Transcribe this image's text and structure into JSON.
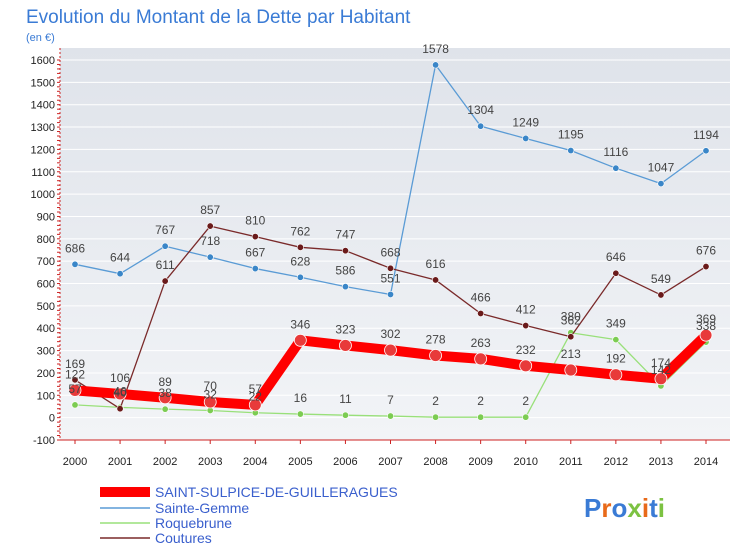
{
  "chart_data": {
    "type": "line",
    "title": "Evolution du Montant de la Dette par Habitant",
    "subtitle": "(en €)",
    "ylim": [
      -100,
      1600
    ],
    "yticks": [
      -100,
      0,
      100,
      200,
      300,
      400,
      500,
      600,
      700,
      800,
      900,
      1000,
      1100,
      1200,
      1300,
      1400,
      1500,
      1600
    ],
    "x": [
      "2000",
      "2001",
      "2002",
      "2003",
      "2004",
      "2005",
      "2006",
      "2007",
      "2008",
      "2009",
      "2010",
      "2011",
      "2012",
      "2013",
      "2014"
    ],
    "grid": "horizontal",
    "legend_position": "bottom-left",
    "series": [
      {
        "name": "SAINT-SULPICE-DE-GUILLERAGUES",
        "color": "#ff0000",
        "marker": "#e83a3a",
        "values": [
          122,
          106,
          89,
          70,
          57,
          346,
          323,
          302,
          278,
          263,
          232,
          213,
          192,
          174,
          369
        ],
        "labels": [
          "122",
          "106",
          "89",
          "70",
          "57",
          "346",
          "323",
          "302",
          "278",
          "263",
          "232",
          "213",
          "192",
          "174",
          "369"
        ]
      },
      {
        "name": "Sainte-Gemme",
        "color": "#5a9bd5",
        "marker": "#3a86c8",
        "values": [
          686,
          644,
          767,
          718,
          667,
          628,
          586,
          551,
          1578,
          1304,
          1249,
          1195,
          1116,
          1047,
          1194
        ],
        "labels": [
          "686",
          "644",
          "767",
          "718",
          "667",
          "628",
          "586",
          "551",
          "1578",
          "1304",
          "1249",
          "1195",
          "1116",
          "1047",
          "1194"
        ]
      },
      {
        "name": "Roquebrune",
        "color": "#99e07a",
        "marker": "#7ccc52",
        "values": [
          57,
          46,
          38,
          32,
          22,
          16,
          11,
          7,
          2,
          2,
          2,
          380,
          349,
          142,
          338
        ],
        "labels": [
          "57",
          "46",
          "38",
          "32",
          "22",
          "16",
          "11",
          "7",
          "2",
          "2",
          "2",
          "380",
          "349",
          "142",
          "338"
        ]
      },
      {
        "name": "Coutures",
        "color": "#7a2a2a",
        "marker": "#6a1a1a",
        "values": [
          169,
          40,
          611,
          857,
          810,
          762,
          747,
          668,
          616,
          466,
          412,
          362,
          646,
          549,
          676
        ],
        "labels": [
          "169",
          "40",
          "611",
          "857",
          "810",
          "762",
          "747",
          "668",
          "616",
          "466",
          "412",
          "362",
          "646",
          "549",
          "676"
        ]
      }
    ]
  },
  "branding": {
    "logo": "Proxiti"
  }
}
